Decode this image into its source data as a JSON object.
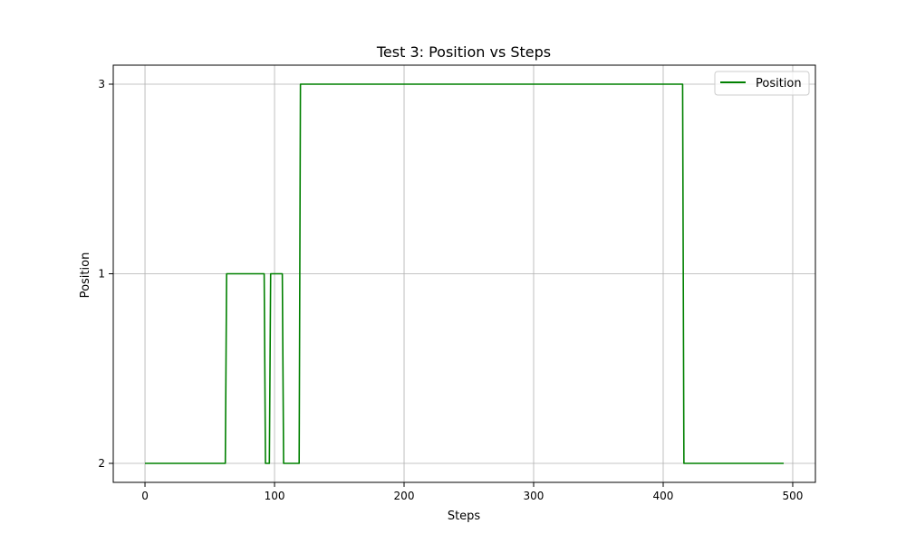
{
  "chart_data": {
    "type": "line",
    "title": "Test 3: Position vs Steps",
    "xlabel": "Steps",
    "ylabel": "Position",
    "xlim": [
      -24.5,
      517.5
    ],
    "x_ticks": [
      0,
      100,
      200,
      300,
      400,
      500
    ],
    "y_categories": [
      "2",
      "1",
      "3"
    ],
    "grid": true,
    "legend_position": "top-right",
    "line_color": "#008000",
    "series": [
      {
        "name": "Position",
        "x": [
          0,
          62,
          63,
          92,
          93,
          96,
          97,
          106,
          107,
          119,
          120,
          415,
          416,
          493
        ],
        "y": [
          "2",
          "2",
          "1",
          "1",
          "2",
          "2",
          "1",
          "1",
          "2",
          "2",
          "3",
          "3",
          "2",
          "2"
        ]
      }
    ]
  }
}
